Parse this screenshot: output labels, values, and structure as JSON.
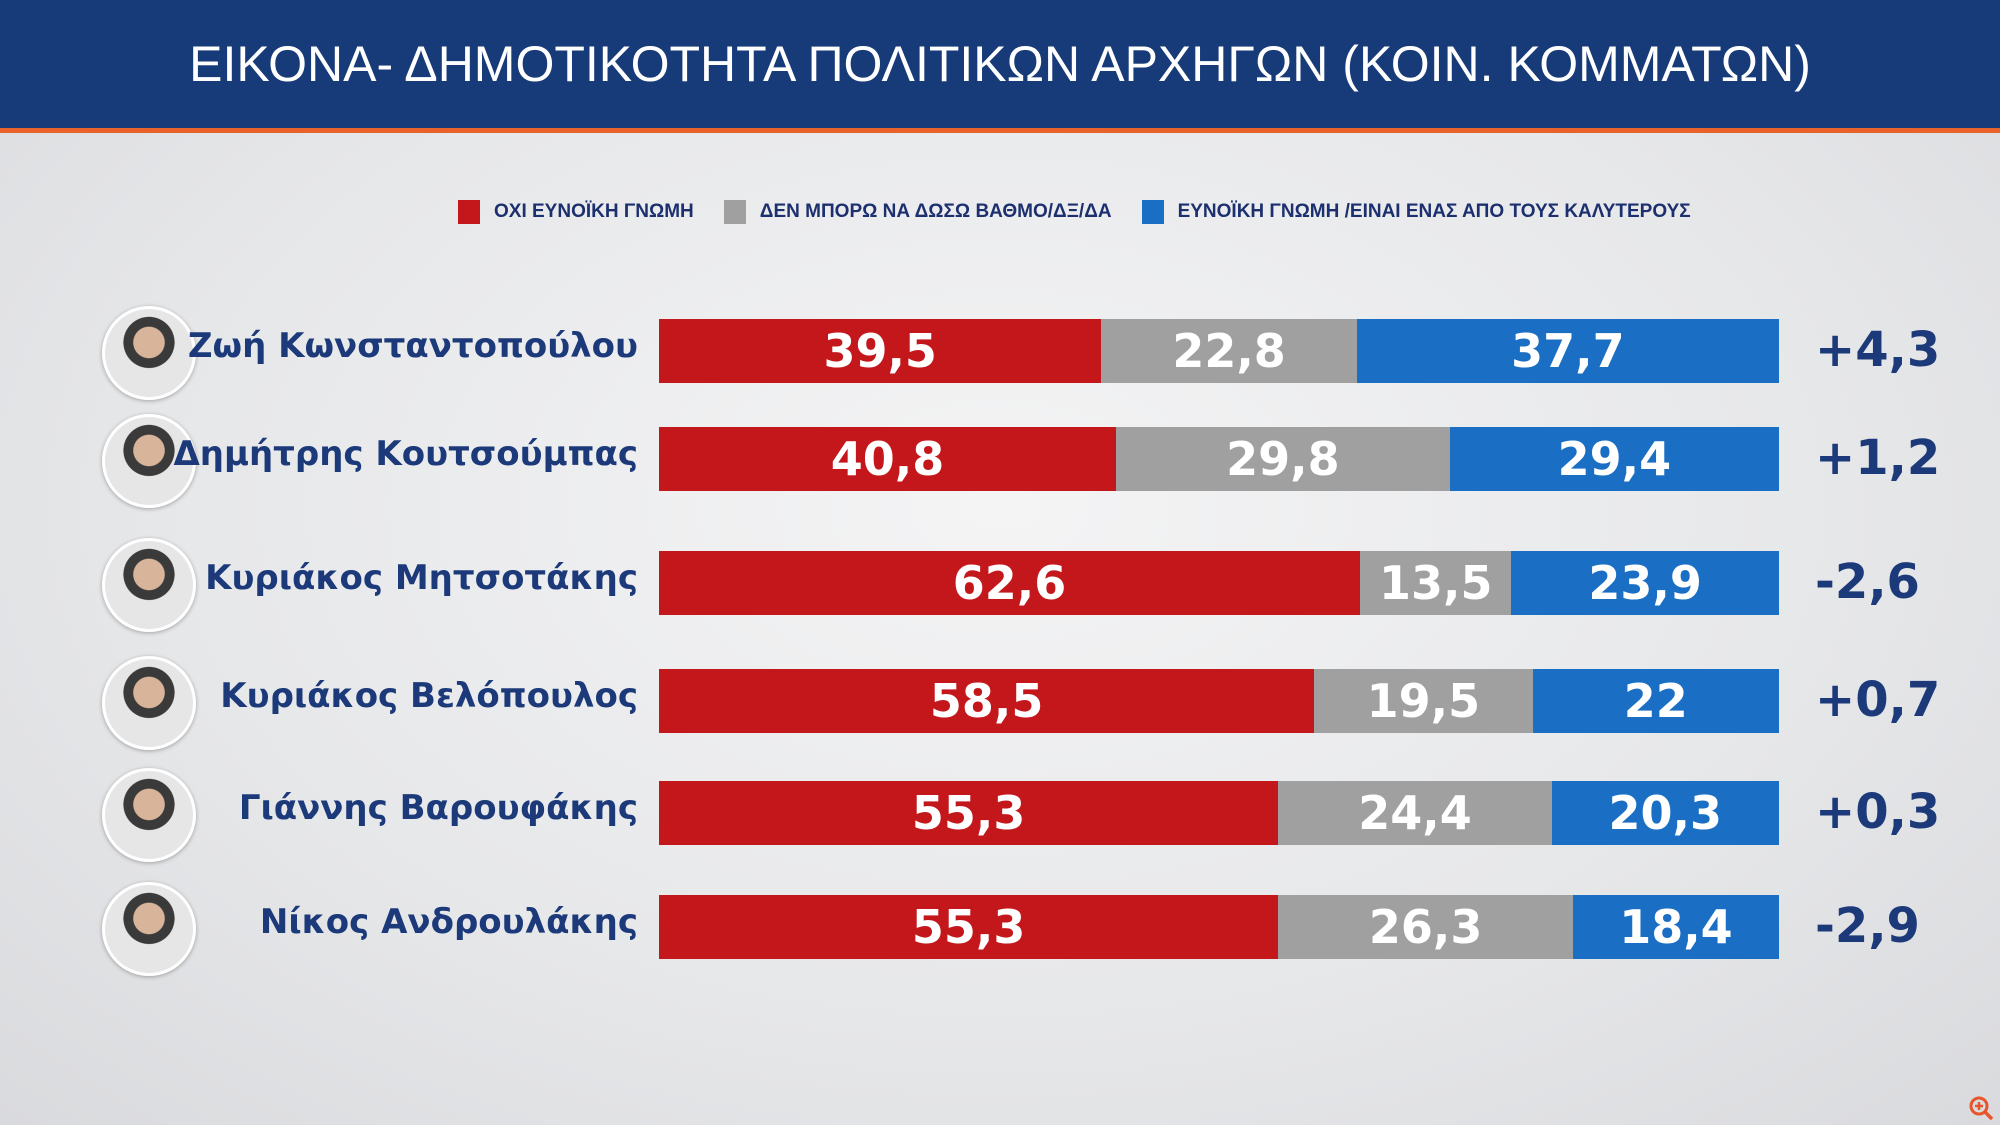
{
  "header": {
    "title": "ΕΙΚΟΝΑ- ΔΗΜΟΤΙΚΟΤΗΤΑ ΠΟΛΙΤΙΚΩΝ ΑΡΧΗΓΩΝ (ΚΟΙΝ. ΚΟΜΜΑΤΩΝ)"
  },
  "chart_data": {
    "type": "bar",
    "stacked": true,
    "orientation": "horizontal",
    "title": "ΕΙΚΟΝΑ- ΔΗΜΟΤΙΚΟΤΗΤΑ ΠΟΛΙΤΙΚΩΝ ΑΡΧΗΓΩΝ (ΚΟΙΝ. ΚΟΜΜΑΤΩΝ)",
    "legend_position": "top",
    "categories": [
      "Ζωή Κωνσταντοπούλου",
      "Δημήτρης Κουτσούμπας",
      "Κυριάκος Μητσοτάκης",
      "Κυριάκος Βελόπουλος",
      "Γιάννης Βαρουφάκης",
      "Νίκος Ανδρουλάκης"
    ],
    "series": [
      {
        "name": "ΟΧΙ ΕΥΝΟΪΚΗ ΓΝΩΜΗ",
        "color": "#c4171c",
        "values": [
          39.5,
          40.8,
          62.6,
          58.5,
          55.3,
          55.3
        ],
        "labels": [
          "39,5",
          "40,8",
          "62,6",
          "58,5",
          "55,3",
          "55,3"
        ]
      },
      {
        "name": "ΔΕΝ ΜΠΟΡΩ ΝΑ ΔΩΣΩ ΒΑΘΜΟ/ΔΞ/ΔΑ",
        "color": "#a0a0a0",
        "values": [
          22.8,
          29.8,
          13.5,
          19.5,
          24.4,
          26.3
        ],
        "labels": [
          "22,8",
          "29,8",
          "13,5",
          "19,5",
          "24,4",
          "26,3"
        ]
      },
      {
        "name": "ΕΥΝΟΪΚΗ ΓΝΩΜΗ /ΕΙΝΑΙ ΕΝΑΣ ΑΠΟ ΤΟΥΣ ΚΑΛΥΤΕΡΟΥΣ",
        "color": "#1a6fc4",
        "values": [
          37.7,
          29.4,
          23.9,
          22,
          20.3,
          18.4
        ],
        "labels": [
          "37,7",
          "29,4",
          "23,9",
          "22",
          "20,3",
          "18,4"
        ]
      }
    ],
    "changes": [
      "+4,3",
      "+1,2",
      "-2,6",
      "+0,7",
      "+0,3",
      "-2,9"
    ]
  },
  "icons": {
    "zoom": "zoom-in-icon"
  }
}
